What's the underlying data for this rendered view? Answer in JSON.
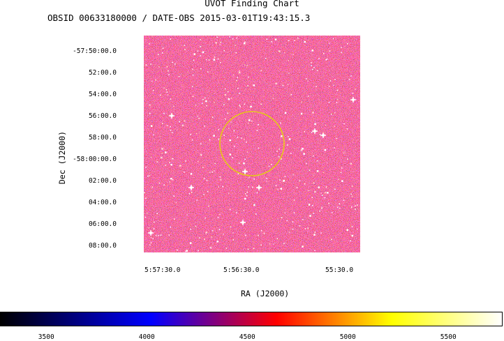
{
  "header": {
    "title": "UVOT Finding Chart",
    "subtitle": "OBSID 00633180000 / DATE-OBS 2015-03-01T19:43:15.3"
  },
  "chart_data": {
    "type": "heatmap",
    "title": "UVOT Finding Chart",
    "subtitle": "OBSID 00633180000 / DATE-OBS 2015-03-01T19:43:15.3",
    "xlabel": "RA (J2000)",
    "ylabel": "Dec (J2000)",
    "x_ticks": [
      "5:57:30.0",
      "5:56:30.0",
      "55:30.0"
    ],
    "y_ticks": [
      "-57:50:00.0",
      "52:00.0",
      "54:00.0",
      "56:00.0",
      "58:00.0",
      "-58:00:00.0",
      "02:00.0",
      "04:00.0",
      "06:00.0",
      "08:00.0"
    ],
    "colorbar": {
      "ticks": [
        "3500",
        "4000",
        "4500",
        "5000",
        "5500"
      ],
      "values": [
        3500,
        4000,
        4500,
        5000,
        5500
      ],
      "range": [
        3270,
        5770
      ],
      "colormap": [
        "#000000",
        "#0000ff",
        "#ff0000",
        "#ffff00",
        "#ffffff"
      ]
    },
    "marker": {
      "shape": "circle",
      "color": "#e6c619",
      "description_position": "center-upper"
    }
  }
}
